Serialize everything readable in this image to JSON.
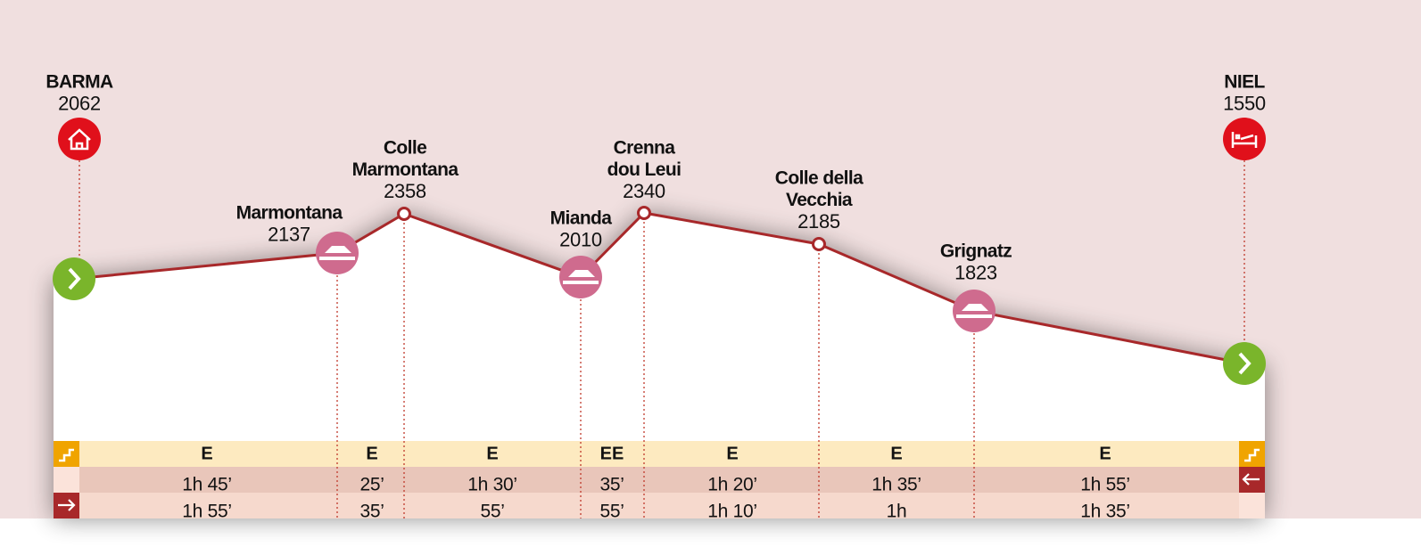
{
  "waypoints": [
    {
      "name": [
        "BARMA"
      ],
      "altitude": 2062
    },
    {
      "name": [
        "Marmontana"
      ],
      "altitude": 2137
    },
    {
      "name": [
        "Colle",
        "Marmontana"
      ],
      "altitude": 2358
    },
    {
      "name": [
        "Mianda"
      ],
      "altitude": 2010
    },
    {
      "name": [
        "Crenna",
        "dou Leui"
      ],
      "altitude": 2340
    },
    {
      "name": [
        "Colle della",
        "Vecchia"
      ],
      "altitude": 2185
    },
    {
      "name": [
        "Grignatz"
      ],
      "altitude": 1823
    },
    {
      "name": [
        "NIEL"
      ],
      "altitude": 1550
    }
  ],
  "segments": [
    {
      "difficulty": "E",
      "time_back": "1h 45’",
      "time_forward": "1h 55’"
    },
    {
      "difficulty": "E",
      "time_back": "25’",
      "time_forward": "35’"
    },
    {
      "difficulty": "E",
      "time_back": "1h 30’",
      "time_forward": "55’"
    },
    {
      "difficulty": "EE",
      "time_back": "35’",
      "time_forward": "55’"
    },
    {
      "difficulty": "E",
      "time_back": "1h 20’",
      "time_forward": "1h 10’"
    },
    {
      "difficulty": "E",
      "time_back": "1h 35’",
      "time_forward": "1h"
    },
    {
      "difficulty": "E",
      "time_back": "1h 55’",
      "time_forward": "1h 35’"
    }
  ]
}
